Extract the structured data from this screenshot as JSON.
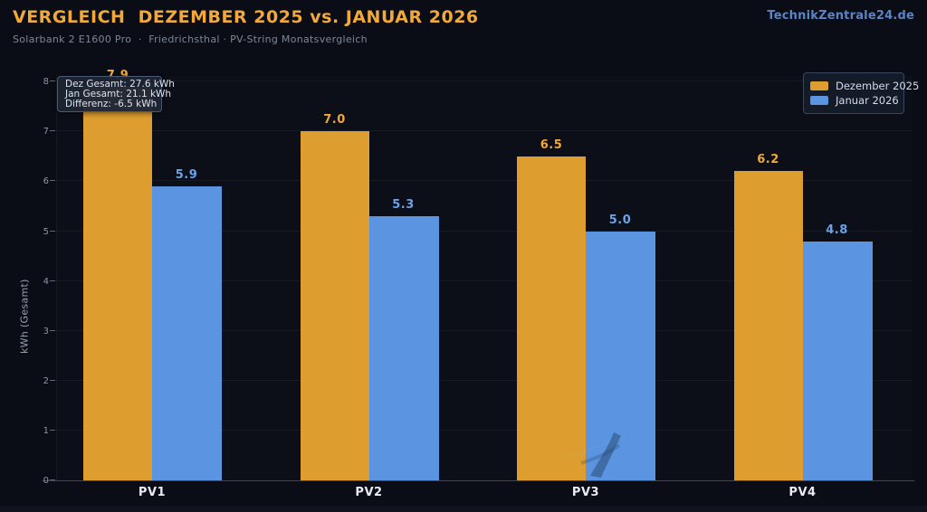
{
  "header": {
    "title": "VERGLEICH  DEZEMBER 2025 vs. JANUAR 2026",
    "subtitle": "Solarbank 2 E1600 Pro  ·  Friedrichsthal · PV-String Monatsvergleich",
    "brand": "TechnikZentrale24.de"
  },
  "colors": {
    "accent_orange": "#F2A93B",
    "brand_blue": "#5B84C5",
    "background": "#0a0d15"
  },
  "tooltip": {
    "lines": [
      "Dez Gesamt: 27.6 kWh",
      "Jan Gesamt: 21.1 kWh",
      "Differenz: -6.5 kWh"
    ]
  },
  "chart_data": {
    "type": "bar",
    "categories": [
      "PV1",
      "PV2",
      "PV3",
      "PV4"
    ],
    "series": [
      {
        "name": "Dezember 2025",
        "values": [
          7.9,
          7.0,
          6.5,
          6.2
        ],
        "color": "#DE9E2F",
        "label_color": "#F0A83A",
        "total_kwh": 27.6
      },
      {
        "name": "Januar 2026",
        "values": [
          5.9,
          5.3,
          5.0,
          4.8
        ],
        "color": "#5B94E0",
        "label_color": "#6BA3EA",
        "total_kwh": 21.1
      }
    ],
    "difference_kwh": -6.5,
    "title": "VERGLEICH  DEZEMBER 2025 vs. JANUAR 2026",
    "xlabel": "",
    "ylabel": "kWh (Gesamt)",
    "yticks": [
      0,
      1,
      2,
      3,
      4,
      5,
      6,
      7,
      8
    ],
    "ylim": [
      0,
      8.1
    ],
    "grid": true,
    "legend_position": "upper right",
    "note": "label of first Dezember bar hidden behind tooltip overlay"
  }
}
